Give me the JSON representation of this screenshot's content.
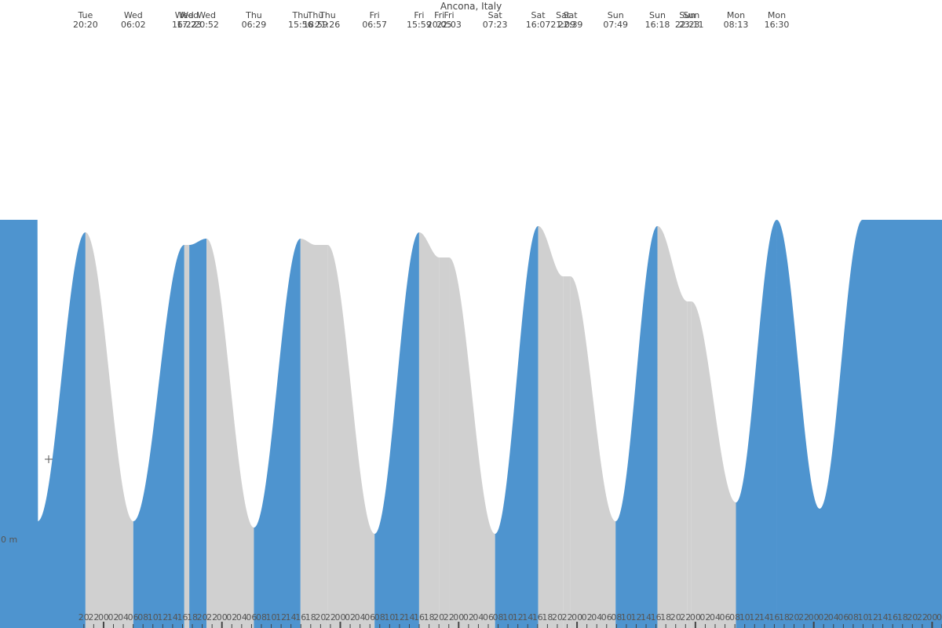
{
  "chart_data": {
    "type": "area",
    "title": "Ancona, Italy",
    "xlabel": "",
    "ylabel": "",
    "zero_label": "0 m",
    "ylim": [
      0,
      1
    ],
    "xlim": [
      -21,
      170
    ],
    "colors": {
      "rising": "#4e94cf",
      "falling": "#d0d0d0",
      "tick": "#444444"
    },
    "hour_ticks": [
      "20",
      "22",
      "00",
      "02",
      "04",
      "06",
      "08",
      "10",
      "12",
      "14",
      "16",
      "18",
      "20",
      "22",
      "00",
      "02",
      "04",
      "06",
      "08",
      "10",
      "12",
      "14",
      "16",
      "18",
      "20",
      "22",
      "00",
      "02",
      "04",
      "06",
      "08",
      "10",
      "12",
      "14",
      "16",
      "18",
      "20",
      "22",
      "00",
      "02",
      "04",
      "06",
      "08",
      "10",
      "12",
      "14",
      "16",
      "18",
      "20",
      "22",
      "00",
      "02",
      "04",
      "06",
      "08",
      "10",
      "12",
      "14",
      "16",
      "18",
      "20",
      "22",
      "00",
      "02",
      "04",
      "06",
      "08",
      "10",
      "12",
      "14",
      "16",
      "18",
      "20",
      "22",
      "00",
      "02",
      "04",
      "06",
      "08",
      "10",
      "12",
      "14",
      "16",
      "18",
      "20",
      "22",
      "00",
      "02",
      "04",
      "06"
    ],
    "events": [
      {
        "day": "Tue",
        "time": "20:20",
        "t": -3.67,
        "level": 0.63
      },
      {
        "day": "Wed",
        "time": "06:02",
        "t": 6.03,
        "level": 0.17
      },
      {
        "day": "Wed",
        "time": "16:22",
        "t": 16.37,
        "level": 0.61
      },
      {
        "day": "Wed",
        "time": "17:23",
        "t": 17.38,
        "level": 0.61
      },
      {
        "day": "Wed",
        "time": "20:52",
        "t": 20.87,
        "level": 0.62
      },
      {
        "day": "Thu",
        "time": "06:29",
        "t": 30.48,
        "level": 0.16
      },
      {
        "day": "Thu",
        "time": "15:56",
        "t": 39.93,
        "level": 0.62
      },
      {
        "day": "Thu",
        "time": "18:59",
        "t": 42.98,
        "level": 0.61
      },
      {
        "day": "Thu",
        "time": "21:26",
        "t": 45.43,
        "level": 0.61
      },
      {
        "day": "Fri",
        "time": "06:57",
        "t": 54.95,
        "level": 0.15
      },
      {
        "day": "Fri",
        "time": "15:59",
        "t": 63.98,
        "level": 0.63
      },
      {
        "day": "Fri",
        "time": "20:05",
        "t": 68.08,
        "level": 0.59
      },
      {
        "day": "Fri",
        "time": "22:03",
        "t": 70.05,
        "level": 0.59
      },
      {
        "day": "Sat",
        "time": "07:23",
        "t": 79.38,
        "level": 0.15
      },
      {
        "day": "Sat",
        "time": "16:07",
        "t": 88.12,
        "level": 0.64
      },
      {
        "day": "Sat",
        "time": "21:09",
        "t": 93.15,
        "level": 0.56
      },
      {
        "day": "Sat",
        "time": "22:39",
        "t": 94.65,
        "level": 0.56
      },
      {
        "day": "Sun",
        "time": "07:49",
        "t": 103.82,
        "level": 0.17
      },
      {
        "day": "Sun",
        "time": "16:18",
        "t": 112.3,
        "level": 0.64
      },
      {
        "day": "Sun",
        "time": "22:23",
        "t": 118.38,
        "level": 0.52
      },
      {
        "day": "Sun",
        "time": "23:11",
        "t": 119.18,
        "level": 0.52
      },
      {
        "day": "Mon",
        "time": "08:13",
        "t": 128.22,
        "level": 0.2
      },
      {
        "day": "Mon",
        "time": "16:30",
        "t": 136.5,
        "level": 0.65
      }
    ]
  }
}
